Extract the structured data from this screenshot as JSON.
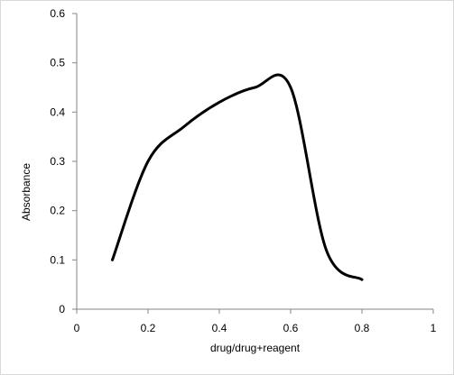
{
  "chart_data": {
    "type": "line",
    "title": "",
    "xlabel": "drug/drug+reagent",
    "ylabel": "Absorbance",
    "xlim": [
      0,
      1
    ],
    "ylim": [
      0,
      0.6
    ],
    "x_ticks": [
      "0",
      "0.2",
      "0.4",
      "0.6",
      "0.8",
      "1"
    ],
    "y_ticks": [
      "0",
      "0.1",
      "0.2",
      "0.3",
      "0.4",
      "0.5",
      "0.6"
    ],
    "grid": false,
    "legend": "none",
    "smooth": true,
    "series": [
      {
        "color": "#000000",
        "x": [
          0.1,
          0.2,
          0.3,
          0.4,
          0.5,
          0.6,
          0.7,
          0.8
        ],
        "y": [
          0.1,
          0.3,
          0.37,
          0.42,
          0.45,
          0.45,
          0.12,
          0.06
        ]
      }
    ]
  }
}
